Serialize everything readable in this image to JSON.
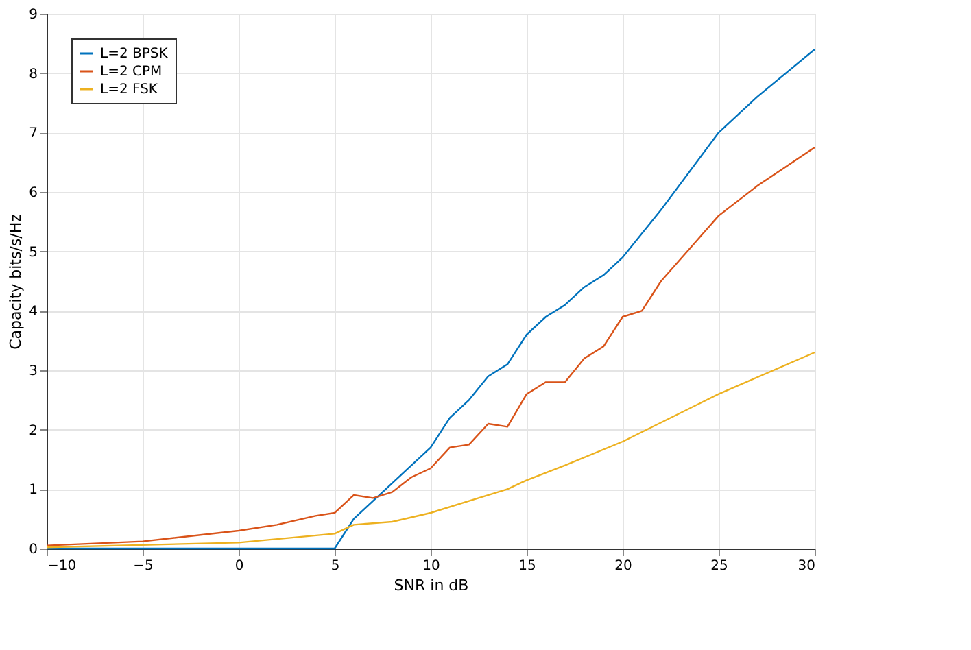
{
  "chart_data": {
    "type": "line",
    "xlabel": "SNR in dB",
    "ylabel": "Capacity bits/s/Hz",
    "xlim": [
      -10,
      30
    ],
    "xticks": [
      -10,
      -5,
      0,
      5,
      10,
      15,
      20,
      25,
      30
    ],
    "ylim": [
      0,
      9
    ],
    "yticks": [
      0,
      1,
      2,
      3,
      4,
      5,
      6,
      7,
      8,
      9
    ],
    "grid": true,
    "legend": "top left",
    "marker": "none",
    "line_style": "solid",
    "series": [
      {
        "name": "L=2 BPSK",
        "color": "#0072bd",
        "x": [
          -10,
          0,
          5,
          6,
          7,
          8,
          9,
          10,
          11,
          12,
          13,
          14,
          15,
          16,
          17,
          18,
          19,
          20,
          22,
          25,
          27,
          30
        ],
        "values": [
          0,
          0,
          0,
          0.5,
          0.8,
          1.1,
          1.4,
          1.7,
          2.2,
          2.5,
          2.9,
          3.1,
          3.6,
          3.9,
          4.1,
          4.4,
          4.6,
          4.9,
          5.7,
          7.0,
          7.6,
          8.4
        ]
      },
      {
        "name": "L=2 CPM",
        "color": "#d95319",
        "x": [
          -10,
          -5,
          0,
          2,
          4,
          5,
          6,
          7,
          8,
          9,
          10,
          11,
          12,
          13,
          14,
          15,
          16,
          17,
          18,
          19,
          20,
          21,
          22,
          25,
          27,
          30
        ],
        "values": [
          0.05,
          0.12,
          0.3,
          0.4,
          0.55,
          0.6,
          0.9,
          0.85,
          0.95,
          1.2,
          1.35,
          1.7,
          1.75,
          2.1,
          2.05,
          2.6,
          2.8,
          2.8,
          3.2,
          3.4,
          3.9,
          4.0,
          4.5,
          5.6,
          6.1,
          6.75
        ]
      },
      {
        "name": "L=2 FSK",
        "color": "#edb120",
        "x": [
          -10,
          0,
          5,
          6,
          8,
          10,
          12,
          14,
          15,
          17,
          20,
          25,
          30
        ],
        "values": [
          0.02,
          0.1,
          0.25,
          0.4,
          0.45,
          0.6,
          0.8,
          1.0,
          1.15,
          1.4,
          1.8,
          2.6,
          3.3
        ]
      }
    ]
  }
}
